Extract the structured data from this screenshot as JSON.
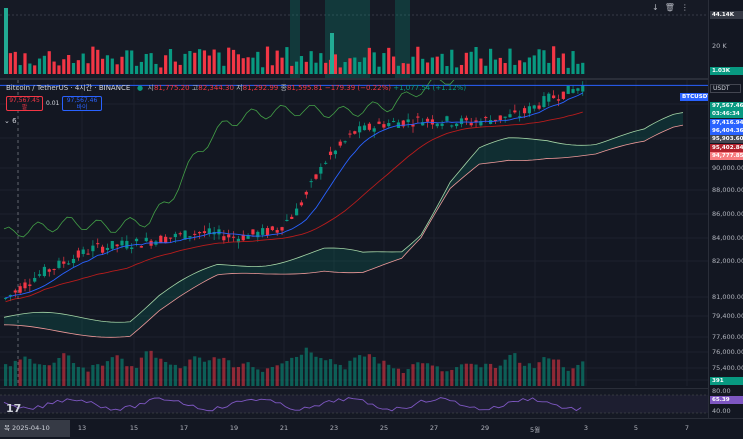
{
  "legend": {
    "symbol": "Bitcoin / TetherUS · 4시간 · BINANCE",
    "open_label": "시",
    "open": "81,775.20",
    "high_label": "고",
    "high": "82,344.30",
    "low_label": "저",
    "low": "81,292.99",
    "close_label": "종",
    "close": "81,595.81",
    "change": "−179.39 (−0.22%)",
    "extra": "+1,077.54 (+1.12%)"
  },
  "trade": {
    "sell_price": "97,567.45",
    "sell_label": "팔",
    "spread": "0.01",
    "buy_price": "97,567.46",
    "buy_label": "바이"
  },
  "indicator_toggle": "6",
  "currency_box": "USDT",
  "volume_pane": {
    "axis_labels": [
      "20 K"
    ],
    "tag_top": "44.14K",
    "tag_current": "1.03K"
  },
  "price_axis": {
    "labels": [
      "90,000.00",
      "88,000.00",
      "86,000.00",
      "84,000.00",
      "82,000.00",
      "81,000.00",
      "79,400.00",
      "77,600.00",
      "76,000.00",
      "75,400.00",
      "74,000.00"
    ]
  },
  "price_tags": [
    {
      "text": "BTCUSDT",
      "color": "#2962ff"
    },
    {
      "text": "97,567.46",
      "color": "#089981"
    },
    {
      "text": "03:46:34",
      "color": "#089981"
    },
    {
      "text": "97,416.94",
      "color": "#2962ff"
    },
    {
      "text": "96,404.36",
      "color": "#2962ff"
    },
    {
      "text": "95,903.60",
      "color": "#434651"
    },
    {
      "text": "95,402.84",
      "color": "#b2222e"
    },
    {
      "text": "94,777.85",
      "color": "#f77c80"
    }
  ],
  "rsi": {
    "axis_labels": [
      "80.00",
      "40.00"
    ],
    "tag": "65.39",
    "volume_tag": "391"
  },
  "time_axis": {
    "cursor": "목 2025-04-10  13:00",
    "labels": [
      "13",
      "15",
      "17",
      "19",
      "21",
      "23",
      "25",
      "27",
      "29",
      "5월",
      "3",
      "5",
      "7"
    ]
  },
  "colors": {
    "up": "#089981",
    "down": "#f23645",
    "background": "#131722",
    "grid": "#1e222d",
    "price_line": "#2962ff"
  },
  "chart_data": {
    "type": "candlestick",
    "volume": [
      18,
      20,
      22,
      25,
      28,
      30,
      24,
      22,
      20,
      18,
      22,
      26,
      30,
      28,
      24,
      20,
      16,
      14,
      18,
      22,
      20,
      26,
      30,
      28,
      24,
      22,
      20,
      18,
      26,
      32,
      34,
      30,
      28,
      22,
      20,
      18,
      16,
      20,
      24,
      28,
      26,
      22,
      24,
      28,
      30,
      26,
      22,
      20,
      18,
      22,
      24,
      20,
      16,
      14,
      18,
      20,
      22,
      24,
      26,
      28,
      30,
      34,
      38,
      36,
      32,
      30,
      28,
      26,
      22,
      20,
      18,
      24,
      26,
      28,
      30,
      32,
      28,
      24,
      22,
      20,
      18,
      16,
      14,
      18,
      20,
      22,
      24,
      20,
      18,
      16,
      14,
      12,
      14,
      16,
      18,
      20,
      22,
      18,
      16,
      20
    ],
    "rsi_axis": [
      40,
      80
    ],
    "y_range": [
      73500,
      98000
    ]
  }
}
